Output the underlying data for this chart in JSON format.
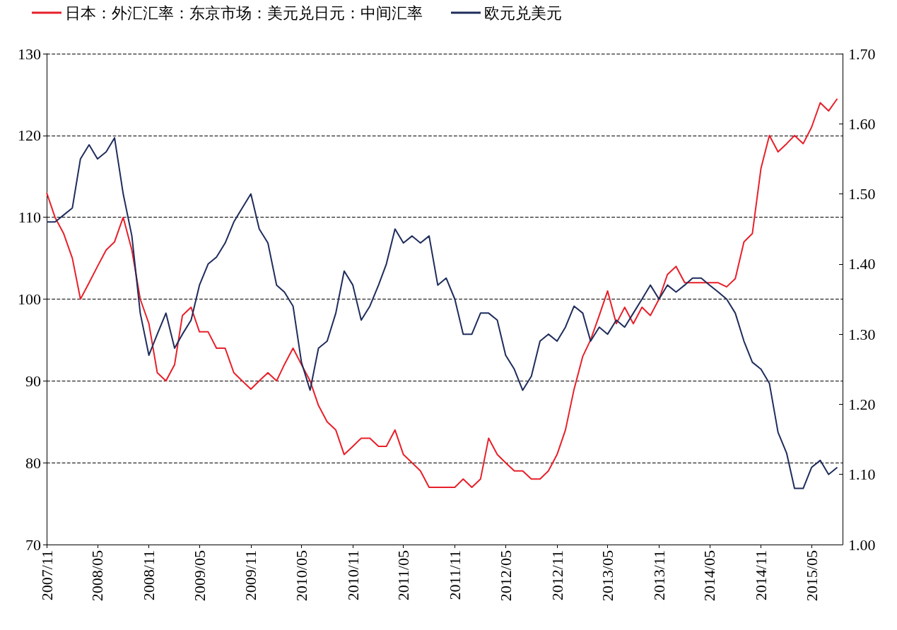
{
  "chart_data": {
    "type": "line",
    "legend": "top left",
    "grid": "y",
    "marker": "none",
    "line_style": "solid",
    "x": [
      "2007-11",
      "2007-12",
      "2008-01",
      "2008-02",
      "2008-03",
      "2008-04",
      "2008-05",
      "2008-06",
      "2008-07",
      "2008-08",
      "2008-09",
      "2008-10",
      "2008-11",
      "2008-12",
      "2009-01",
      "2009-02",
      "2009-03",
      "2009-04",
      "2009-05",
      "2009-06",
      "2009-07",
      "2009-08",
      "2009-09",
      "2009-10",
      "2009-11",
      "2009-12",
      "2010-01",
      "2010-02",
      "2010-03",
      "2010-04",
      "2010-05",
      "2010-06",
      "2010-07",
      "2010-08",
      "2010-09",
      "2010-10",
      "2010-11",
      "2010-12",
      "2011-01",
      "2011-02",
      "2011-03",
      "2011-04",
      "2011-05",
      "2011-06",
      "2011-07",
      "2011-08",
      "2011-09",
      "2011-10",
      "2011-11",
      "2011-12",
      "2012-01",
      "2012-02",
      "2012-03",
      "2012-04",
      "2012-05",
      "2012-06",
      "2012-07",
      "2012-08",
      "2012-09",
      "2012-10",
      "2012-11",
      "2012-12",
      "2013-01",
      "2013-02",
      "2013-03",
      "2013-04",
      "2013-05",
      "2013-06",
      "2013-07",
      "2013-08",
      "2013-09",
      "2013-10",
      "2013-11",
      "2013-12",
      "2014-01",
      "2014-02",
      "2014-03",
      "2014-04",
      "2014-05",
      "2014-06",
      "2014-07",
      "2014-08",
      "2014-09",
      "2014-10",
      "2014-11",
      "2014-12",
      "2015-01",
      "2015-02",
      "2015-03",
      "2015-04",
      "2015-05",
      "2015-06",
      "2015-07",
      "2015-08"
    ],
    "series": [
      {
        "name": "日本：外汇汇率：东京市场：美元兑日元：中间汇率",
        "color": "#e8202a",
        "values": [
          113,
          110,
          108,
          105,
          100,
          102,
          104,
          106,
          107,
          110,
          106,
          100,
          97,
          91,
          90,
          92,
          98,
          99,
          96,
          96,
          94,
          94,
          91,
          90,
          89,
          90,
          91,
          90,
          92,
          94,
          92,
          90,
          87,
          85,
          84,
          81,
          82,
          83,
          83,
          82,
          82,
          84,
          81,
          80,
          79,
          77,
          77,
          77,
          77,
          78,
          77,
          78,
          83,
          81,
          80,
          79,
          79,
          78,
          78,
          79,
          81,
          84,
          89,
          93,
          95,
          98,
          101,
          97,
          99,
          97,
          99,
          98,
          100,
          103,
          104,
          102,
          102,
          102,
          102,
          102,
          101.5,
          102.5,
          107,
          108,
          116,
          120,
          118,
          119,
          120,
          119,
          121,
          124,
          123,
          124.5
        ]
      },
      {
        "name": "欧元兑美元",
        "color": "#1f2d5c",
        "axis": "y2",
        "values": [
          1.46,
          1.46,
          1.47,
          1.48,
          1.55,
          1.57,
          1.55,
          1.56,
          1.58,
          1.5,
          1.44,
          1.33,
          1.27,
          1.3,
          1.33,
          1.28,
          1.3,
          1.32,
          1.37,
          1.4,
          1.41,
          1.43,
          1.46,
          1.48,
          1.5,
          1.45,
          1.43,
          1.37,
          1.36,
          1.34,
          1.26,
          1.22,
          1.28,
          1.29,
          1.33,
          1.39,
          1.37,
          1.32,
          1.34,
          1.37,
          1.4,
          1.45,
          1.43,
          1.44,
          1.43,
          1.44,
          1.37,
          1.38,
          1.35,
          1.3,
          1.3,
          1.33,
          1.33,
          1.32,
          1.27,
          1.25,
          1.22,
          1.24,
          1.29,
          1.3,
          1.29,
          1.31,
          1.34,
          1.33,
          1.29,
          1.31,
          1.3,
          1.32,
          1.31,
          1.33,
          1.35,
          1.37,
          1.35,
          1.37,
          1.36,
          1.37,
          1.38,
          1.38,
          1.37,
          1.36,
          1.35,
          1.33,
          1.29,
          1.26,
          1.25,
          1.23,
          1.16,
          1.13,
          1.08,
          1.08,
          1.11,
          1.12,
          1.1,
          1.11
        ]
      }
    ],
    "xlim": [
      "2007-11",
      "2015-08-20"
    ],
    "xticks": [
      {
        "value": "2007-11",
        "label": "2007/11"
      },
      {
        "value": "2008-05",
        "label": "2008/05"
      },
      {
        "value": "2008-11",
        "label": "2008/11"
      },
      {
        "value": "2009-05",
        "label": "2009/05"
      },
      {
        "value": "2009-11",
        "label": "2009/11"
      },
      {
        "value": "2010-05",
        "label": "2010/05"
      },
      {
        "value": "2010-11",
        "label": "2010/11"
      },
      {
        "value": "2011-05",
        "label": "2011/05"
      },
      {
        "value": "2011-11",
        "label": "2011/11"
      },
      {
        "value": "2012-05",
        "label": "2012/05"
      },
      {
        "value": "2012-11",
        "label": "2012/11"
      },
      {
        "value": "2013-05",
        "label": "2013/05"
      },
      {
        "value": "2013-11",
        "label": "2013/11"
      },
      {
        "value": "2014-05",
        "label": "2014/05"
      },
      {
        "value": "2014-11",
        "label": "2014/11"
      },
      {
        "value": "2015-05",
        "label": "2015/05"
      }
    ],
    "ylim": [
      70,
      130
    ],
    "yticks": [
      70,
      80,
      90,
      100,
      110,
      120,
      130
    ],
    "y2lim": [
      1.0,
      1.7
    ],
    "y2ticks": [
      {
        "value": 1.0,
        "label": "1.00"
      },
      {
        "value": 1.1,
        "label": "1.10"
      },
      {
        "value": 1.2,
        "label": "1.20"
      },
      {
        "value": 1.3,
        "label": "1.30"
      },
      {
        "value": 1.4,
        "label": "1.40"
      },
      {
        "value": 1.5,
        "label": "1.50"
      },
      {
        "value": 1.6,
        "label": "1.60"
      },
      {
        "value": 1.7,
        "label": "1.70"
      }
    ]
  }
}
